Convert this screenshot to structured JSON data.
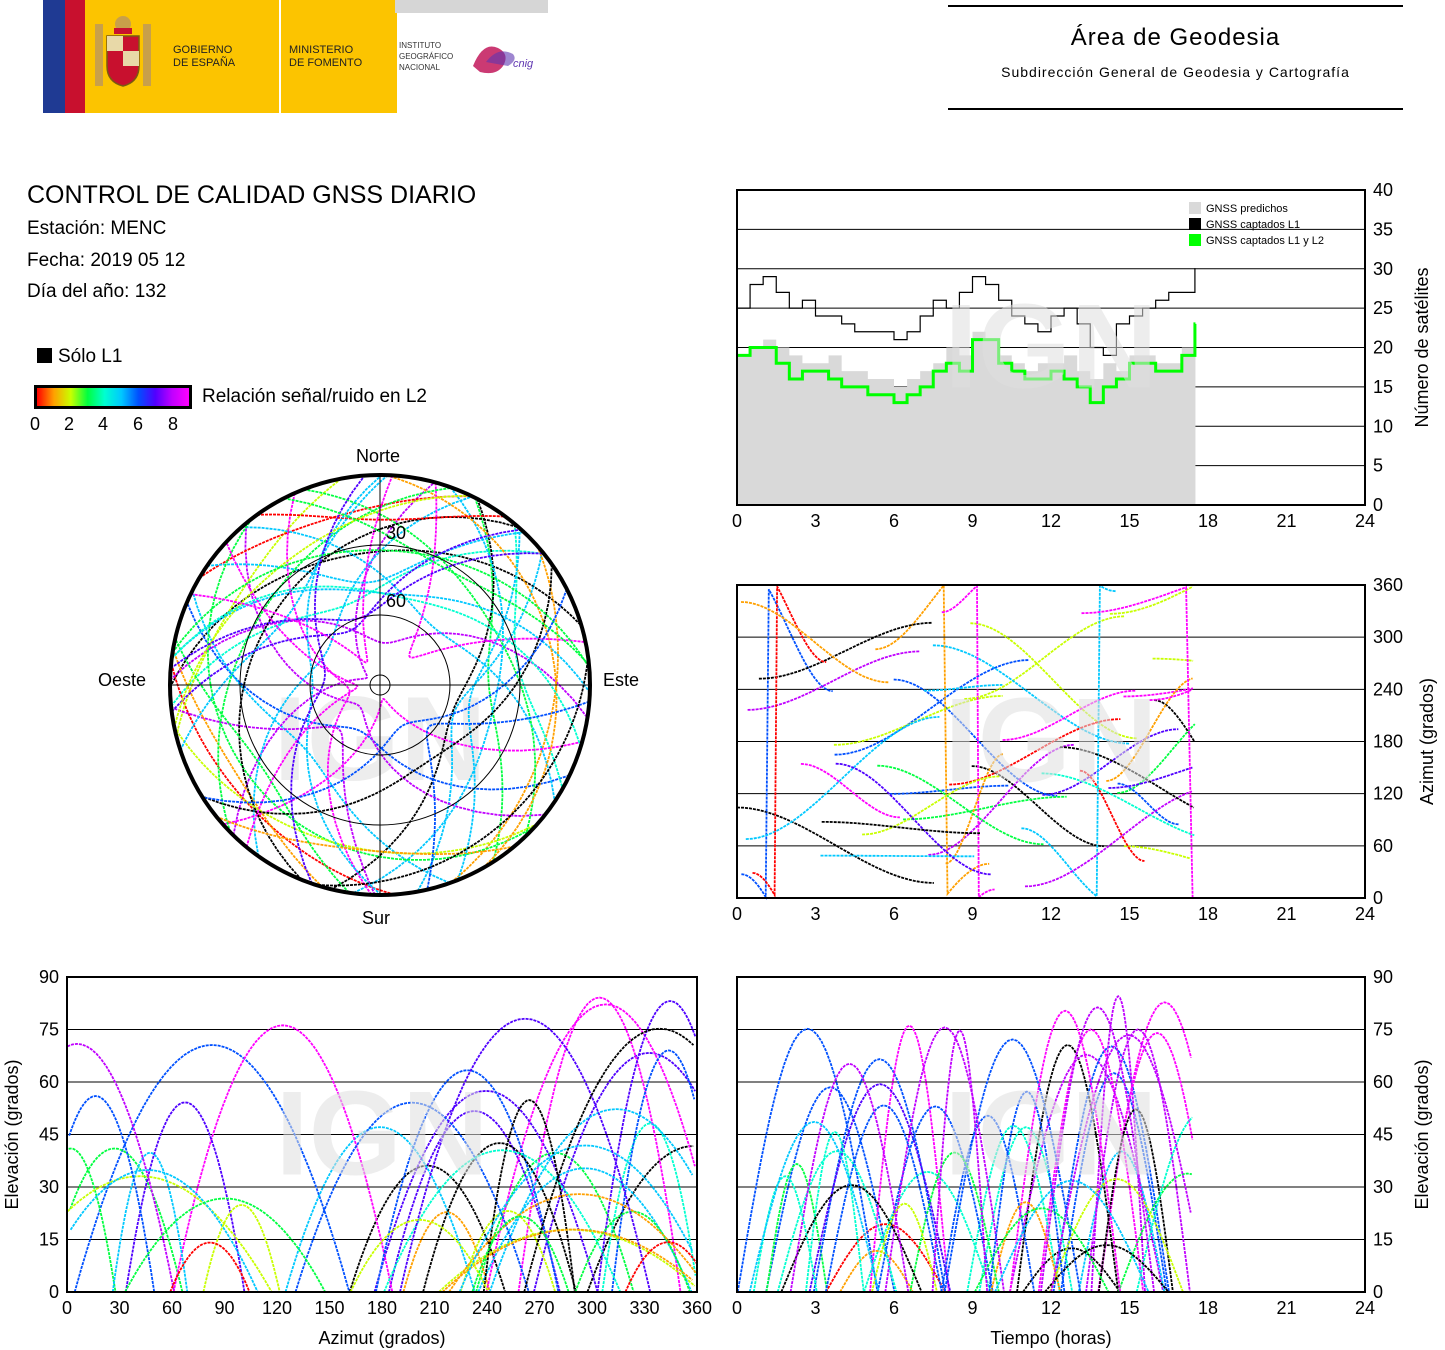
{
  "header": {
    "gov_line1": "GOBIERNO",
    "gov_line2": "DE ESPAÑA",
    "min_line1": "MINISTERIO",
    "min_line2": "DE FOMENTO",
    "ign_line1": "INSTITUTO",
    "ign_line2": "GEOGRÁFICO",
    "ign_line3": "NACIONAL",
    "cnig": "cnig",
    "area_title": "Área de Geodesia",
    "area_subtitle": "Subdirección General de Geodesia y Cartografía"
  },
  "report": {
    "title": "CONTROL DE CALIDAD GNSS DIARIO",
    "station": "Estación: MENC",
    "date": "Fecha: 2019 05 12",
    "doy": "Día del año: 132"
  },
  "legend": {
    "l1_only": "Sólo L1",
    "snr_label": "Relación señal/ruido en L2",
    "snr_ticks": [
      "0",
      "2",
      "4",
      "6",
      "8"
    ]
  },
  "watermark": "IGN",
  "colors": {
    "predicted": "#d9d9d9",
    "l1": "#000000",
    "l1l2": "#00ff00",
    "snr_scale": [
      "#ff0000",
      "#ffa000",
      "#c8ff00",
      "#00ff40",
      "#00ffd0",
      "#00c8ff",
      "#0050ff",
      "#5000ff",
      "#c000ff",
      "#ff00ff"
    ]
  },
  "chart_data": [
    {
      "id": "satellite_count",
      "type": "line",
      "xlabel": "",
      "ylabel": "Número de satélites",
      "xlim": [
        0,
        24
      ],
      "ylim": [
        0,
        40
      ],
      "xticks": [
        0,
        3,
        6,
        9,
        12,
        15,
        18,
        21,
        24
      ],
      "yticks": [
        0,
        5,
        10,
        15,
        20,
        25,
        30,
        35,
        40
      ],
      "legend_position": "top-right",
      "x": [
        0,
        0.5,
        1,
        1.5,
        2,
        2.5,
        3,
        3.5,
        4,
        4.5,
        5,
        5.5,
        6,
        6.5,
        7,
        7.5,
        8,
        8.5,
        9,
        9.5,
        10,
        10.5,
        11,
        11.5,
        12,
        12.5,
        13,
        13.5,
        14,
        14.5,
        15,
        15.5,
        16,
        16.5,
        17,
        17.5
      ],
      "series": [
        {
          "name": "GNSS predichos",
          "values": [
            19,
            20,
            21,
            20,
            19,
            18,
            18,
            19,
            17,
            17,
            16,
            16,
            15,
            16,
            17,
            18,
            20,
            19,
            22,
            21,
            19,
            18,
            17,
            18,
            18,
            19,
            17,
            16,
            18,
            17,
            19,
            19,
            18,
            18,
            20,
            22
          ]
        },
        {
          "name": "GNSS captados L1",
          "values": [
            25,
            28,
            29,
            27,
            25,
            26,
            24,
            24,
            23,
            22,
            22,
            22,
            21,
            22,
            24,
            26,
            25,
            27,
            29,
            28,
            26,
            24,
            23,
            22,
            24,
            25,
            23,
            20,
            19,
            23,
            24,
            25,
            26,
            27,
            27,
            30
          ]
        },
        {
          "name": "GNSS captados L1 y L2",
          "values": [
            19,
            20,
            20,
            18,
            16,
            17,
            17,
            16,
            15,
            15,
            14,
            14,
            13,
            14,
            15,
            17,
            18,
            17,
            21,
            21,
            18,
            17,
            16,
            16,
            17,
            16,
            15,
            13,
            15,
            16,
            18,
            18,
            17,
            17,
            19,
            23
          ]
        }
      ]
    },
    {
      "id": "azimuth_vs_time",
      "type": "scatter",
      "xlabel": "",
      "ylabel": "Azimut (grados)",
      "xlim": [
        0,
        24
      ],
      "ylim": [
        0,
        360
      ],
      "xticks": [
        0,
        3,
        6,
        9,
        12,
        15,
        18,
        21,
        24
      ],
      "yticks": [
        0,
        60,
        120,
        180,
        240,
        300,
        360
      ],
      "color_scale": "snr_l2"
    },
    {
      "id": "elevation_vs_azimuth",
      "type": "scatter",
      "xlabel": "Azimut (grados)",
      "ylabel": "Elevación (grados)",
      "xlim": [
        0,
        360
      ],
      "ylim": [
        0,
        90
      ],
      "xticks": [
        0,
        30,
        60,
        90,
        120,
        150,
        180,
        210,
        240,
        270,
        300,
        330,
        360
      ],
      "yticks": [
        0,
        15,
        30,
        45,
        60,
        75,
        90
      ],
      "color_scale": "snr_l2"
    },
    {
      "id": "elevation_vs_time",
      "type": "scatter",
      "xlabel": "Tiempo (horas)",
      "ylabel": "Elevación (grados)",
      "xlim": [
        0,
        24
      ],
      "ylim": [
        0,
        90
      ],
      "xticks": [
        0,
        3,
        6,
        9,
        12,
        15,
        18,
        21,
        24
      ],
      "yticks": [
        0,
        15,
        30,
        45,
        60,
        75,
        90
      ],
      "color_scale": "snr_l2"
    },
    {
      "id": "skyplot",
      "type": "scatter",
      "directions": {
        "north": "Norte",
        "south": "Sur",
        "east": "Este",
        "west": "Oeste"
      },
      "elevation_rings": [
        "30",
        "60"
      ],
      "color_scale": "snr_l2"
    }
  ]
}
